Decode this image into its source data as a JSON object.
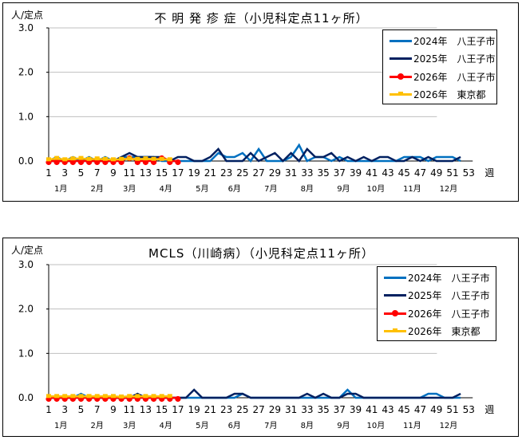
{
  "chart_data": [
    {
      "type": "line",
      "title": "不 明 発 疹 症（小児科定点11ヶ所）",
      "ylabel": "人/定点",
      "xlabel": "週",
      "ylim": [
        0,
        3.0
      ],
      "yticks": [
        "0.0",
        "1.0",
        "2.0",
        "3.0"
      ],
      "xticks": [
        "1",
        "3",
        "5",
        "7",
        "9",
        "11",
        "13",
        "15",
        "17",
        "19",
        "21",
        "23",
        "25",
        "27",
        "29",
        "31",
        "33",
        "35",
        "37",
        "39",
        "41",
        "43",
        "45",
        "47",
        "49",
        "51",
        "53"
      ],
      "months": [
        {
          "label": "1月",
          "week": 2.5
        },
        {
          "label": "2月",
          "week": 7
        },
        {
          "label": "3月",
          "week": 11
        },
        {
          "label": "4月",
          "week": 15.5
        },
        {
          "label": "5月",
          "week": 20
        },
        {
          "label": "6月",
          "week": 24
        },
        {
          "label": "7月",
          "week": 28.5
        },
        {
          "label": "8月",
          "week": 33
        },
        {
          "label": "9月",
          "week": 37.5
        },
        {
          "label": "10月",
          "week": 41.5
        },
        {
          "label": "11月",
          "week": 46
        },
        {
          "label": "12月",
          "week": 50.5
        }
      ],
      "grid": true,
      "legend_position": "top-right",
      "series": [
        {
          "name": "2024年　八王子市",
          "color": "#0070c0",
          "marker": "none",
          "x": [
            1,
            2,
            3,
            4,
            5,
            6,
            7,
            8,
            9,
            10,
            11,
            12,
            13,
            14,
            15,
            16,
            17,
            18,
            19,
            20,
            21,
            22,
            23,
            24,
            25,
            26,
            27,
            28,
            29,
            30,
            31,
            32,
            33,
            34,
            35,
            36,
            37,
            38,
            39,
            40,
            41,
            42,
            43,
            44,
            45,
            46,
            47,
            48,
            49,
            50,
            51,
            52
          ],
          "values": [
            0.0,
            0.09,
            0.0,
            0.09,
            0.0,
            0.09,
            0.0,
            0.09,
            0.0,
            0.09,
            0.09,
            0.09,
            0.09,
            0.09,
            0.0,
            0.0,
            0.0,
            0.0,
            0.0,
            0.0,
            0.0,
            0.18,
            0.09,
            0.09,
            0.18,
            0.0,
            0.27,
            0.0,
            0.0,
            0.0,
            0.09,
            0.36,
            0.0,
            0.09,
            0.09,
            0.0,
            0.09,
            0.0,
            0.0,
            0.0,
            0.0,
            0.0,
            0.0,
            0.0,
            0.09,
            0.09,
            0.09,
            0.0,
            0.09,
            0.09,
            0.09,
            0.0
          ]
        },
        {
          "name": "2025年　八王子市",
          "color": "#002060",
          "marker": "none",
          "x": [
            1,
            2,
            3,
            4,
            5,
            6,
            7,
            8,
            9,
            10,
            11,
            12,
            13,
            14,
            15,
            16,
            17,
            18,
            19,
            20,
            21,
            22,
            23,
            24,
            25,
            26,
            27,
            28,
            29,
            30,
            31,
            32,
            33,
            34,
            35,
            36,
            37,
            38,
            39,
            40,
            41,
            42,
            43,
            44,
            45,
            46,
            47,
            48,
            49,
            50,
            51,
            52
          ],
          "values": [
            0.0,
            0.0,
            0.0,
            0.0,
            0.0,
            0.0,
            0.0,
            0.0,
            0.0,
            0.09,
            0.18,
            0.09,
            0.09,
            0.09,
            0.09,
            0.0,
            0.09,
            0.09,
            0.0,
            0.0,
            0.09,
            0.27,
            0.0,
            0.0,
            0.0,
            0.18,
            0.0,
            0.09,
            0.18,
            0.0,
            0.18,
            0.0,
            0.27,
            0.09,
            0.09,
            0.18,
            0.0,
            0.09,
            0.0,
            0.09,
            0.0,
            0.09,
            0.09,
            0.0,
            0.0,
            0.09,
            0.0,
            0.09,
            0.0,
            0.0,
            0.0,
            0.09
          ]
        },
        {
          "name": "2026年　八王子市",
          "color": "#ff0000",
          "marker": "circle",
          "x": [
            1,
            2,
            3,
            4,
            5,
            6,
            7,
            8,
            9,
            10,
            11,
            12,
            13,
            14,
            15,
            16,
            17
          ],
          "values": [
            0.0,
            0.0,
            0.0,
            0.0,
            0.0,
            0.0,
            0.0,
            0.0,
            0.0,
            0.0,
            0.09,
            0.0,
            0.0,
            0.0,
            0.09,
            0.0,
            0.0
          ]
        },
        {
          "name": "2026年　東京都",
          "color": "#ffc000",
          "marker": "square",
          "x": [
            1,
            2,
            3,
            4,
            5,
            6,
            7,
            8,
            9,
            10,
            11,
            12,
            13,
            14,
            15,
            16
          ],
          "values": [
            0.03,
            0.06,
            0.03,
            0.05,
            0.06,
            0.04,
            0.05,
            0.04,
            0.03,
            0.04,
            0.05,
            0.04,
            0.05,
            0.04,
            0.04,
            0.03
          ]
        }
      ]
    },
    {
      "type": "line",
      "title": "MCLS（川崎病）（小児科定点11ヶ所）",
      "ylabel": "人/定点",
      "xlabel": "週",
      "ylim": [
        0,
        3.0
      ],
      "yticks": [
        "0.0",
        "1.0",
        "2.0",
        "3.0"
      ],
      "xticks": [
        "1",
        "3",
        "5",
        "7",
        "9",
        "11",
        "13",
        "15",
        "17",
        "19",
        "21",
        "23",
        "25",
        "27",
        "29",
        "31",
        "33",
        "35",
        "37",
        "39",
        "41",
        "43",
        "45",
        "47",
        "49",
        "51",
        "53"
      ],
      "months": [
        {
          "label": "1月",
          "week": 2.5
        },
        {
          "label": "2月",
          "week": 7
        },
        {
          "label": "3月",
          "week": 11
        },
        {
          "label": "4月",
          "week": 15.5
        },
        {
          "label": "5月",
          "week": 20
        },
        {
          "label": "6月",
          "week": 24
        },
        {
          "label": "7月",
          "week": 28.5
        },
        {
          "label": "8月",
          "week": 33
        },
        {
          "label": "9月",
          "week": 37.5
        },
        {
          "label": "10月",
          "week": 41.5
        },
        {
          "label": "11月",
          "week": 46
        },
        {
          "label": "12月",
          "week": 50.5
        }
      ],
      "grid": true,
      "legend_position": "top-right",
      "series": [
        {
          "name": "2024年　八王子市",
          "color": "#0070c0",
          "marker": "none",
          "x": [
            1,
            2,
            3,
            4,
            5,
            6,
            7,
            8,
            9,
            10,
            11,
            12,
            13,
            14,
            15,
            16,
            17,
            18,
            19,
            20,
            21,
            22,
            23,
            24,
            25,
            26,
            27,
            28,
            29,
            30,
            31,
            32,
            33,
            34,
            35,
            36,
            37,
            38,
            39,
            40,
            41,
            42,
            43,
            44,
            45,
            46,
            47,
            48,
            49,
            50,
            51,
            52
          ],
          "values": [
            0.0,
            0.0,
            0.0,
            0.0,
            0.09,
            0.0,
            0.0,
            0.0,
            0.0,
            0.0,
            0.0,
            0.0,
            0.0,
            0.0,
            0.0,
            0.0,
            0.0,
            0.0,
            0.0,
            0.0,
            0.0,
            0.0,
            0.0,
            0.0,
            0.09,
            0.0,
            0.0,
            0.0,
            0.0,
            0.0,
            0.0,
            0.0,
            0.0,
            0.0,
            0.0,
            0.0,
            0.0,
            0.18,
            0.0,
            0.0,
            0.0,
            0.0,
            0.0,
            0.0,
            0.0,
            0.0,
            0.0,
            0.09,
            0.09,
            0.0,
            0.0,
            0.0
          ]
        },
        {
          "name": "2025年　八王子市",
          "color": "#002060",
          "marker": "none",
          "x": [
            1,
            2,
            3,
            4,
            5,
            6,
            7,
            8,
            9,
            10,
            11,
            12,
            13,
            14,
            15,
            16,
            17,
            18,
            19,
            20,
            21,
            22,
            23,
            24,
            25,
            26,
            27,
            28,
            29,
            30,
            31,
            32,
            33,
            34,
            35,
            36,
            37,
            38,
            39,
            40,
            41,
            42,
            43,
            44,
            45,
            46,
            47,
            48,
            49,
            50,
            51,
            52
          ],
          "values": [
            0.0,
            0.0,
            0.0,
            0.0,
            0.0,
            0.0,
            0.0,
            0.0,
            0.0,
            0.0,
            0.0,
            0.09,
            0.0,
            0.0,
            0.0,
            0.0,
            0.0,
            0.0,
            0.18,
            0.0,
            0.0,
            0.0,
            0.0,
            0.09,
            0.09,
            0.0,
            0.0,
            0.0,
            0.0,
            0.0,
            0.0,
            0.0,
            0.09,
            0.0,
            0.09,
            0.0,
            0.0,
            0.09,
            0.09,
            0.0,
            0.0,
            0.0,
            0.0,
            0.0,
            0.0,
            0.0,
            0.0,
            0.0,
            0.0,
            0.0,
            0.0,
            0.09
          ]
        },
        {
          "name": "2026年　八王子市",
          "color": "#ff0000",
          "marker": "circle",
          "x": [
            1,
            2,
            3,
            4,
            5,
            6,
            7,
            8,
            9,
            10,
            11,
            12,
            13,
            14,
            15,
            16,
            17
          ],
          "values": [
            0.0,
            0.0,
            0.0,
            0.0,
            0.0,
            0.0,
            0.0,
            0.0,
            0.0,
            0.0,
            0.0,
            0.0,
            0.0,
            0.0,
            0.0,
            0.0,
            0.0
          ]
        },
        {
          "name": "2026年　東京都",
          "color": "#ffc000",
          "marker": "square",
          "x": [
            1,
            2,
            3,
            4,
            5,
            6,
            7,
            8,
            9,
            10,
            11,
            12,
            13,
            14,
            15,
            16
          ],
          "values": [
            0.03,
            0.03,
            0.03,
            0.03,
            0.03,
            0.03,
            0.03,
            0.03,
            0.03,
            0.02,
            0.03,
            0.03,
            0.03,
            0.03,
            0.03,
            0.03
          ]
        }
      ]
    }
  ],
  "panels": [
    {
      "unit": "人/定点",
      "title": "不 明 発 疹 症（小児科定点11ヶ所）",
      "week_label": "週",
      "legend": [
        "2024年　八王子市",
        "2025年　八王子市",
        "2026年　八王子市",
        "2026年　東京都"
      ]
    },
    {
      "unit": "人/定点",
      "title": "MCLS（川崎病）（小児科定点11ヶ所）",
      "week_label": "週",
      "legend": [
        "2024年　八王子市",
        "2025年　八王子市",
        "2026年　八王子市",
        "2026年　東京都"
      ]
    }
  ],
  "colors": {
    "series_2024": "#0070c0",
    "series_2025": "#002060",
    "series_2026_hachioji": "#ff0000",
    "series_2026_tokyo": "#ffc000",
    "gridline": "#bfbfbf",
    "axis": "#000000"
  }
}
